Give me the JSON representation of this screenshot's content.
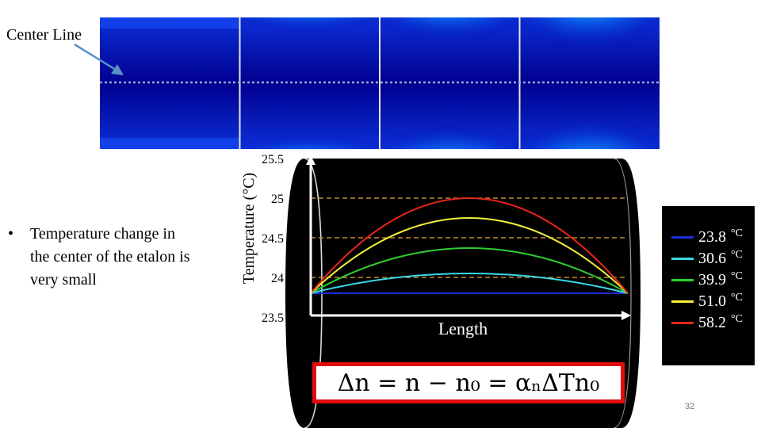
{
  "annotation": {
    "center_line_label": "Center Line"
  },
  "bullet": {
    "marker": "•",
    "text": "Temperature change in the center of the etalon is very small"
  },
  "formula": {
    "text": "Δn = n − n₀ = αₙΔTn₀"
  },
  "page_number": "32",
  "colors": {
    "accent_red": "#e10c0c",
    "center_line": "#9aa7e0",
    "guide_line": "#c58a2a"
  },
  "heatmap": {
    "type": "heatmap",
    "panels": [
      {
        "hot_intensity": 0.0
      },
      {
        "hot_intensity": 0.3
      },
      {
        "hot_intensity": 0.65
      },
      {
        "hot_intensity": 1.0
      }
    ]
  },
  "chart_data": {
    "type": "line",
    "title": "",
    "xlabel": "Length",
    "ylabel": "Temperature (°C)",
    "ylim": [
      23.5,
      25.5
    ],
    "yticks": [
      "25.5",
      "25",
      "24.5",
      "24",
      "23.5"
    ],
    "yticks_values": [
      25.5,
      25,
      24.5,
      24,
      23.5
    ],
    "guide_lines": [
      25.0,
      24.5,
      24.0
    ],
    "x": [
      0,
      0.5,
      1
    ],
    "series": [
      {
        "name": "23.8",
        "unit": "°C",
        "color": "#1f2fd6",
        "start": 23.8,
        "peak": 23.8
      },
      {
        "name": "30.6",
        "unit": "°C",
        "color": "#39d8e8",
        "start": 23.8,
        "peak": 24.05
      },
      {
        "name": "39.9",
        "unit": "°C",
        "color": "#2fcf2f",
        "start": 23.8,
        "peak": 24.37
      },
      {
        "name": "51.0",
        "unit": "°C",
        "color": "#f2ef3a",
        "start": 23.8,
        "peak": 24.75
      },
      {
        "name": "58.2",
        "unit": "°C",
        "color": "#e8261a",
        "start": 23.8,
        "peak": 25.0
      }
    ]
  }
}
